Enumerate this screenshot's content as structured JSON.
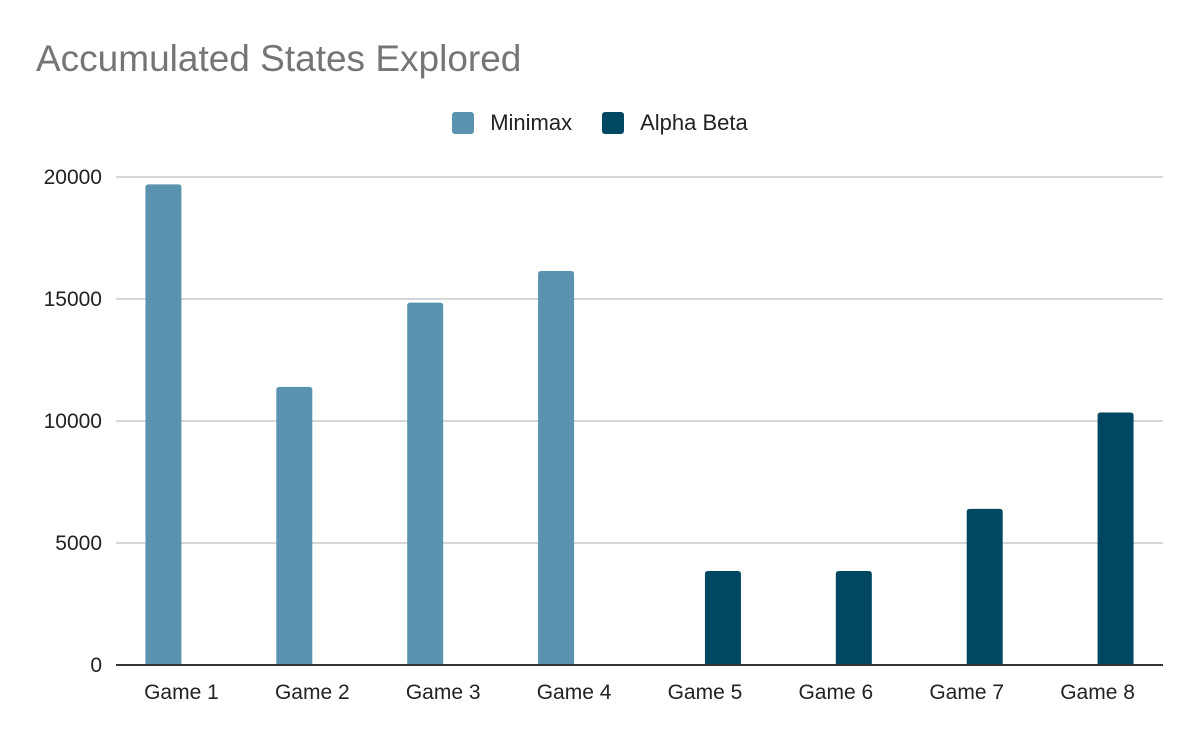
{
  "chart_data": {
    "type": "bar",
    "title": "Accumulated States Explored",
    "xlabel": "",
    "ylabel": "",
    "categories": [
      "Game 1",
      "Game 2",
      "Game 3",
      "Game 4",
      "Game 5",
      "Game 6",
      "Game 7",
      "Game 8"
    ],
    "series": [
      {
        "name": "Minimax",
        "color": "#5a93b0",
        "values": [
          19700,
          11400,
          14850,
          16150,
          null,
          null,
          null,
          null
        ]
      },
      {
        "name": "Alpha Beta",
        "color": "#004761",
        "values": [
          null,
          null,
          null,
          null,
          3850,
          3850,
          6400,
          10350
        ]
      }
    ],
    "ylim": [
      0,
      20000
    ],
    "yticks": [
      "0",
      "5000",
      "10000",
      "15000",
      "20000"
    ],
    "grid": true,
    "legend_position": "top-center"
  }
}
